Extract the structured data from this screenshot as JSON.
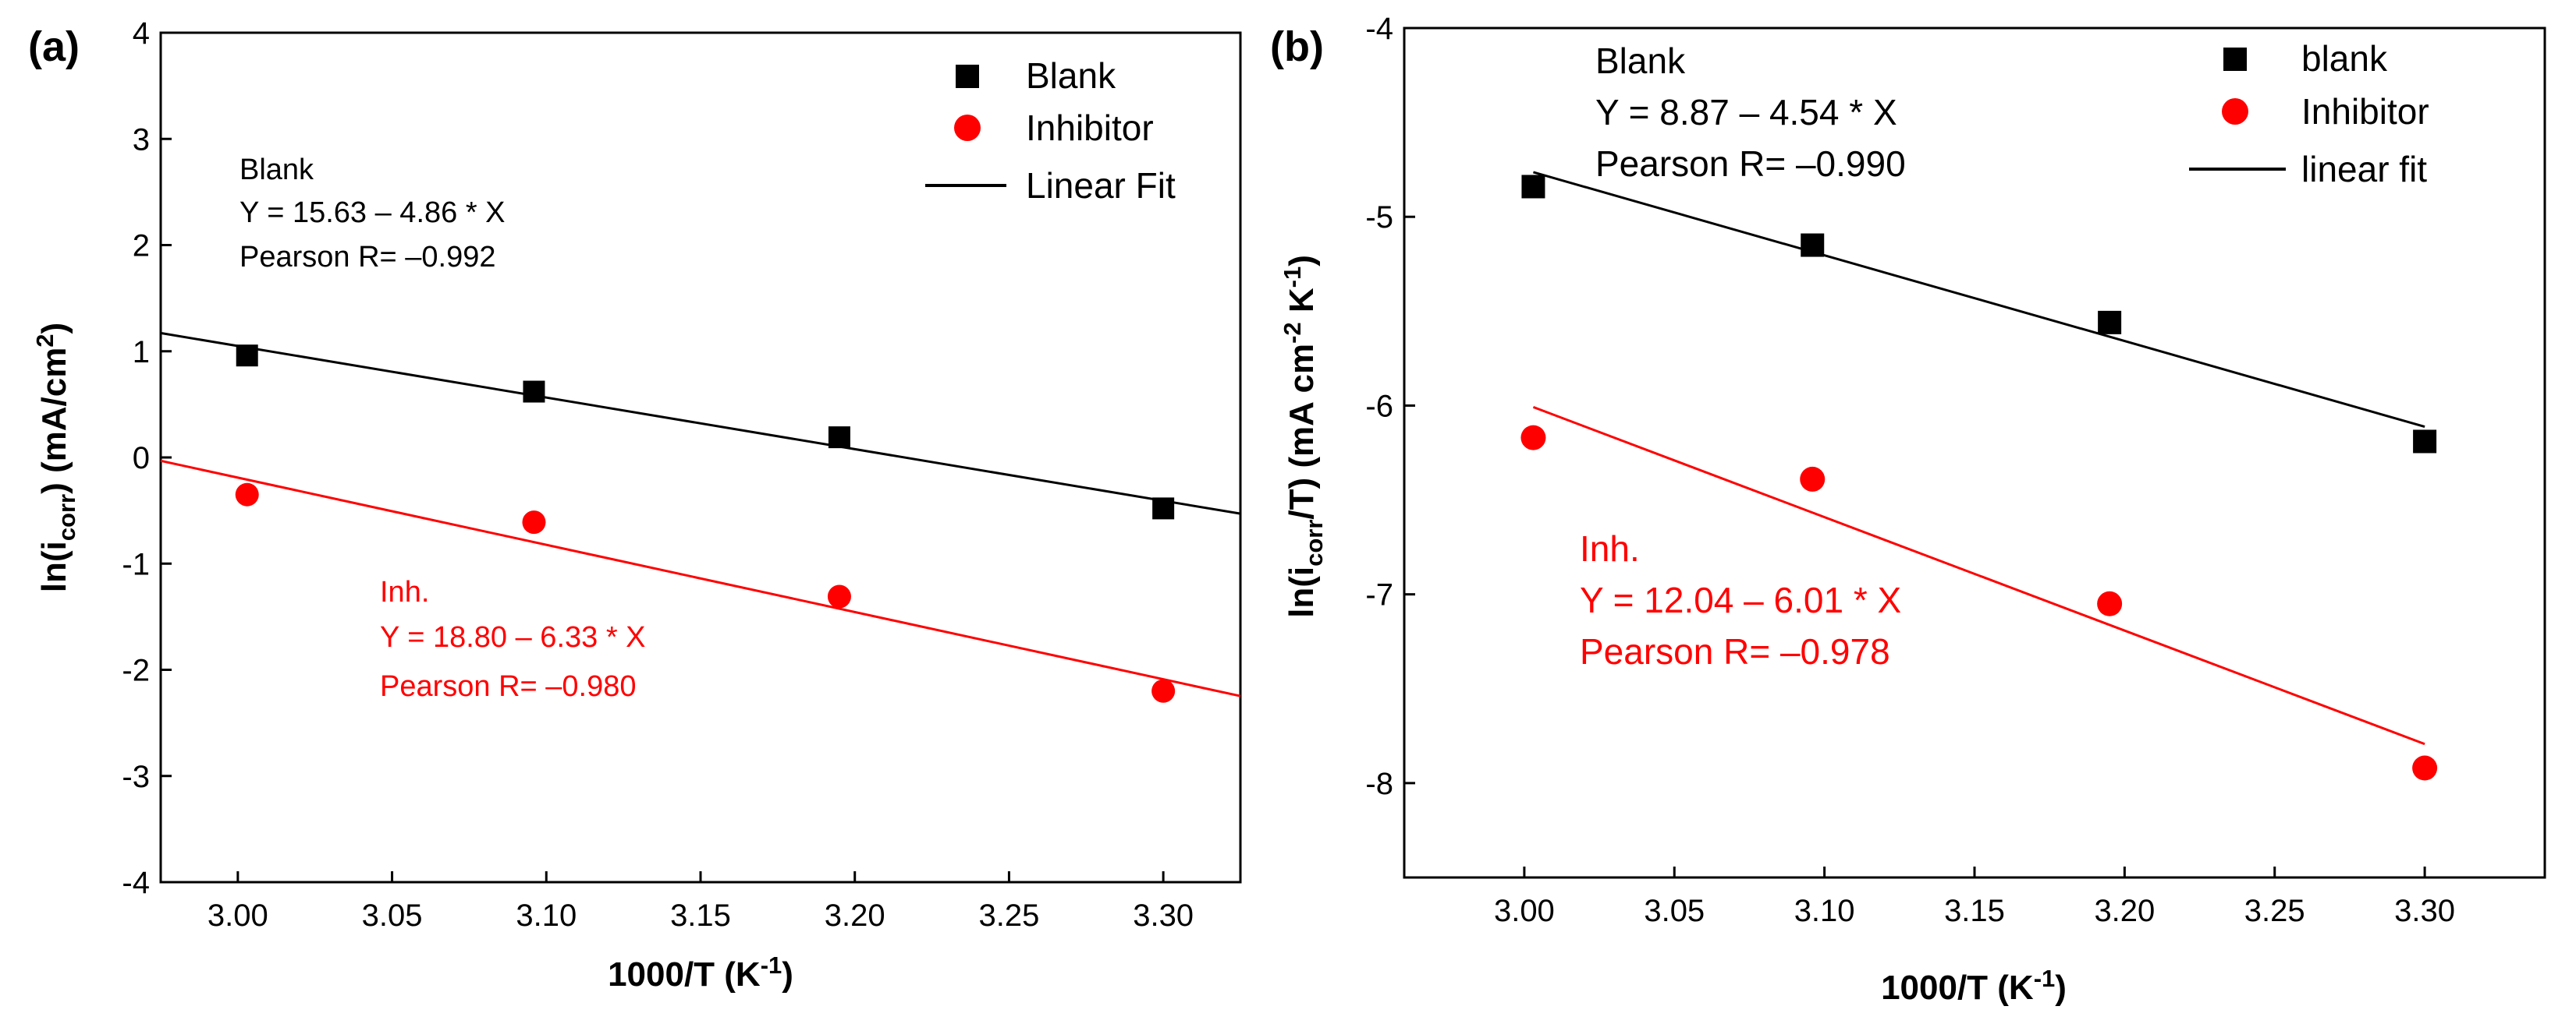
{
  "colors": {
    "blank": "#000000",
    "inhibitor": "#ff0000",
    "axis": "#000000",
    "background": "#ffffff"
  },
  "chart_data": [
    {
      "panel_label": "(a)",
      "type": "scatter",
      "xlabel": "1000/T (K",
      "xlabel_sup": "-1",
      "xlabel_tail": ")",
      "ylabel_pre": "ln(i",
      "ylabel_sub": "corr",
      "ylabel_mid": ") (mA/cm",
      "ylabel_sup": "2",
      "ylabel_tail": ")",
      "xlim": [
        2.975,
        3.325
      ],
      "ylim": [
        -4,
        4
      ],
      "xticks": [
        3.0,
        3.05,
        3.1,
        3.15,
        3.2,
        3.25,
        3.3
      ],
      "xtick_labels": [
        "3.00",
        "3.05",
        "3.10",
        "3.15",
        "3.20",
        "3.25",
        "3.30"
      ],
      "yticks": [
        -4,
        -3,
        -2,
        -1,
        0,
        1,
        2,
        3,
        4
      ],
      "ytick_labels": [
        "-4",
        "-3",
        "-2",
        "-1",
        "0",
        "1",
        "2",
        "3",
        "4"
      ],
      "series": [
        {
          "name": "Blank",
          "marker": "square",
          "color": "#000000",
          "x": [
            3.003,
            3.096,
            3.195,
            3.3
          ],
          "y": [
            0.96,
            0.62,
            0.19,
            -0.48
          ],
          "fit": {
            "intercept": 15.63,
            "slope": -4.86,
            "x_range": [
              2.975,
              3.325
            ]
          }
        },
        {
          "name": "Inhibitor",
          "marker": "circle",
          "color": "#ff0000",
          "x": [
            3.003,
            3.096,
            3.195,
            3.3
          ],
          "y": [
            -0.35,
            -0.61,
            -1.31,
            -2.2
          ],
          "fit": {
            "intercept": 18.8,
            "slope": -6.33,
            "x_range": [
              2.975,
              3.325
            ]
          }
        }
      ],
      "legend": {
        "position": "top-right",
        "entries": [
          "Blank",
          "Inhibitor",
          "Linear Fit"
        ]
      },
      "annotations": {
        "blank": {
          "title": "Blank",
          "equation": "Y = 15.63 – 4.86 * X",
          "pearson": "Pearson R= –0.992"
        },
        "inhibitor": {
          "title": "Inh.",
          "equation": "Y = 18.80 – 6.33 * X",
          "pearson": "Pearson R= –0.980"
        }
      }
    },
    {
      "panel_label": "(b)",
      "type": "scatter",
      "xlabel": "1000/T (K",
      "xlabel_sup": "-1",
      "xlabel_tail": ")",
      "ylabel_pre": "ln(i",
      "ylabel_sub": "corr",
      "ylabel_mid": "/T) (mA cm",
      "ylabel_sup": "-2",
      "ylabel_mid2": " K",
      "ylabel_sup2": "-1",
      "ylabel_tail": ")",
      "xlim": [
        2.96,
        3.34
      ],
      "ylim": [
        -8.5,
        -4
      ],
      "xticks": [
        3.0,
        3.05,
        3.1,
        3.15,
        3.2,
        3.25,
        3.3
      ],
      "xtick_labels": [
        "3.00",
        "3.05",
        "3.10",
        "3.15",
        "3.20",
        "3.25",
        "3.30"
      ],
      "yticks": [
        -8,
        -7,
        -6,
        -5,
        -4
      ],
      "ytick_labels": [
        "-8",
        "-7",
        "-6",
        "-5",
        "-4"
      ],
      "series": [
        {
          "name": "blank",
          "marker": "square",
          "color": "#000000",
          "x": [
            3.003,
            3.096,
            3.195,
            3.3
          ],
          "y": [
            -4.84,
            -5.15,
            -5.56,
            -6.19
          ],
          "fit": {
            "intercept": 8.87,
            "slope": -4.54,
            "x_range": [
              3.003,
              3.3
            ]
          }
        },
        {
          "name": "Inhibitor",
          "marker": "circle",
          "color": "#ff0000",
          "x": [
            3.003,
            3.096,
            3.195,
            3.3
          ],
          "y": [
            -6.17,
            -6.39,
            -7.05,
            -7.92
          ],
          "fit": {
            "intercept": 12.04,
            "slope": -6.01,
            "x_range": [
              3.003,
              3.3
            ]
          }
        }
      ],
      "legend": {
        "position": "top-right",
        "entries": [
          "blank",
          "Inhibitor",
          "linear fit"
        ]
      },
      "annotations": {
        "blank": {
          "title": "Blank",
          "equation": "Y = 8.87 – 4.54 * X",
          "pearson": "Pearson R= –0.990"
        },
        "inhibitor": {
          "title": "Inh.",
          "equation": "Y = 12.04 – 6.01 * X",
          "pearson": "Pearson R= –0.978"
        }
      }
    }
  ]
}
